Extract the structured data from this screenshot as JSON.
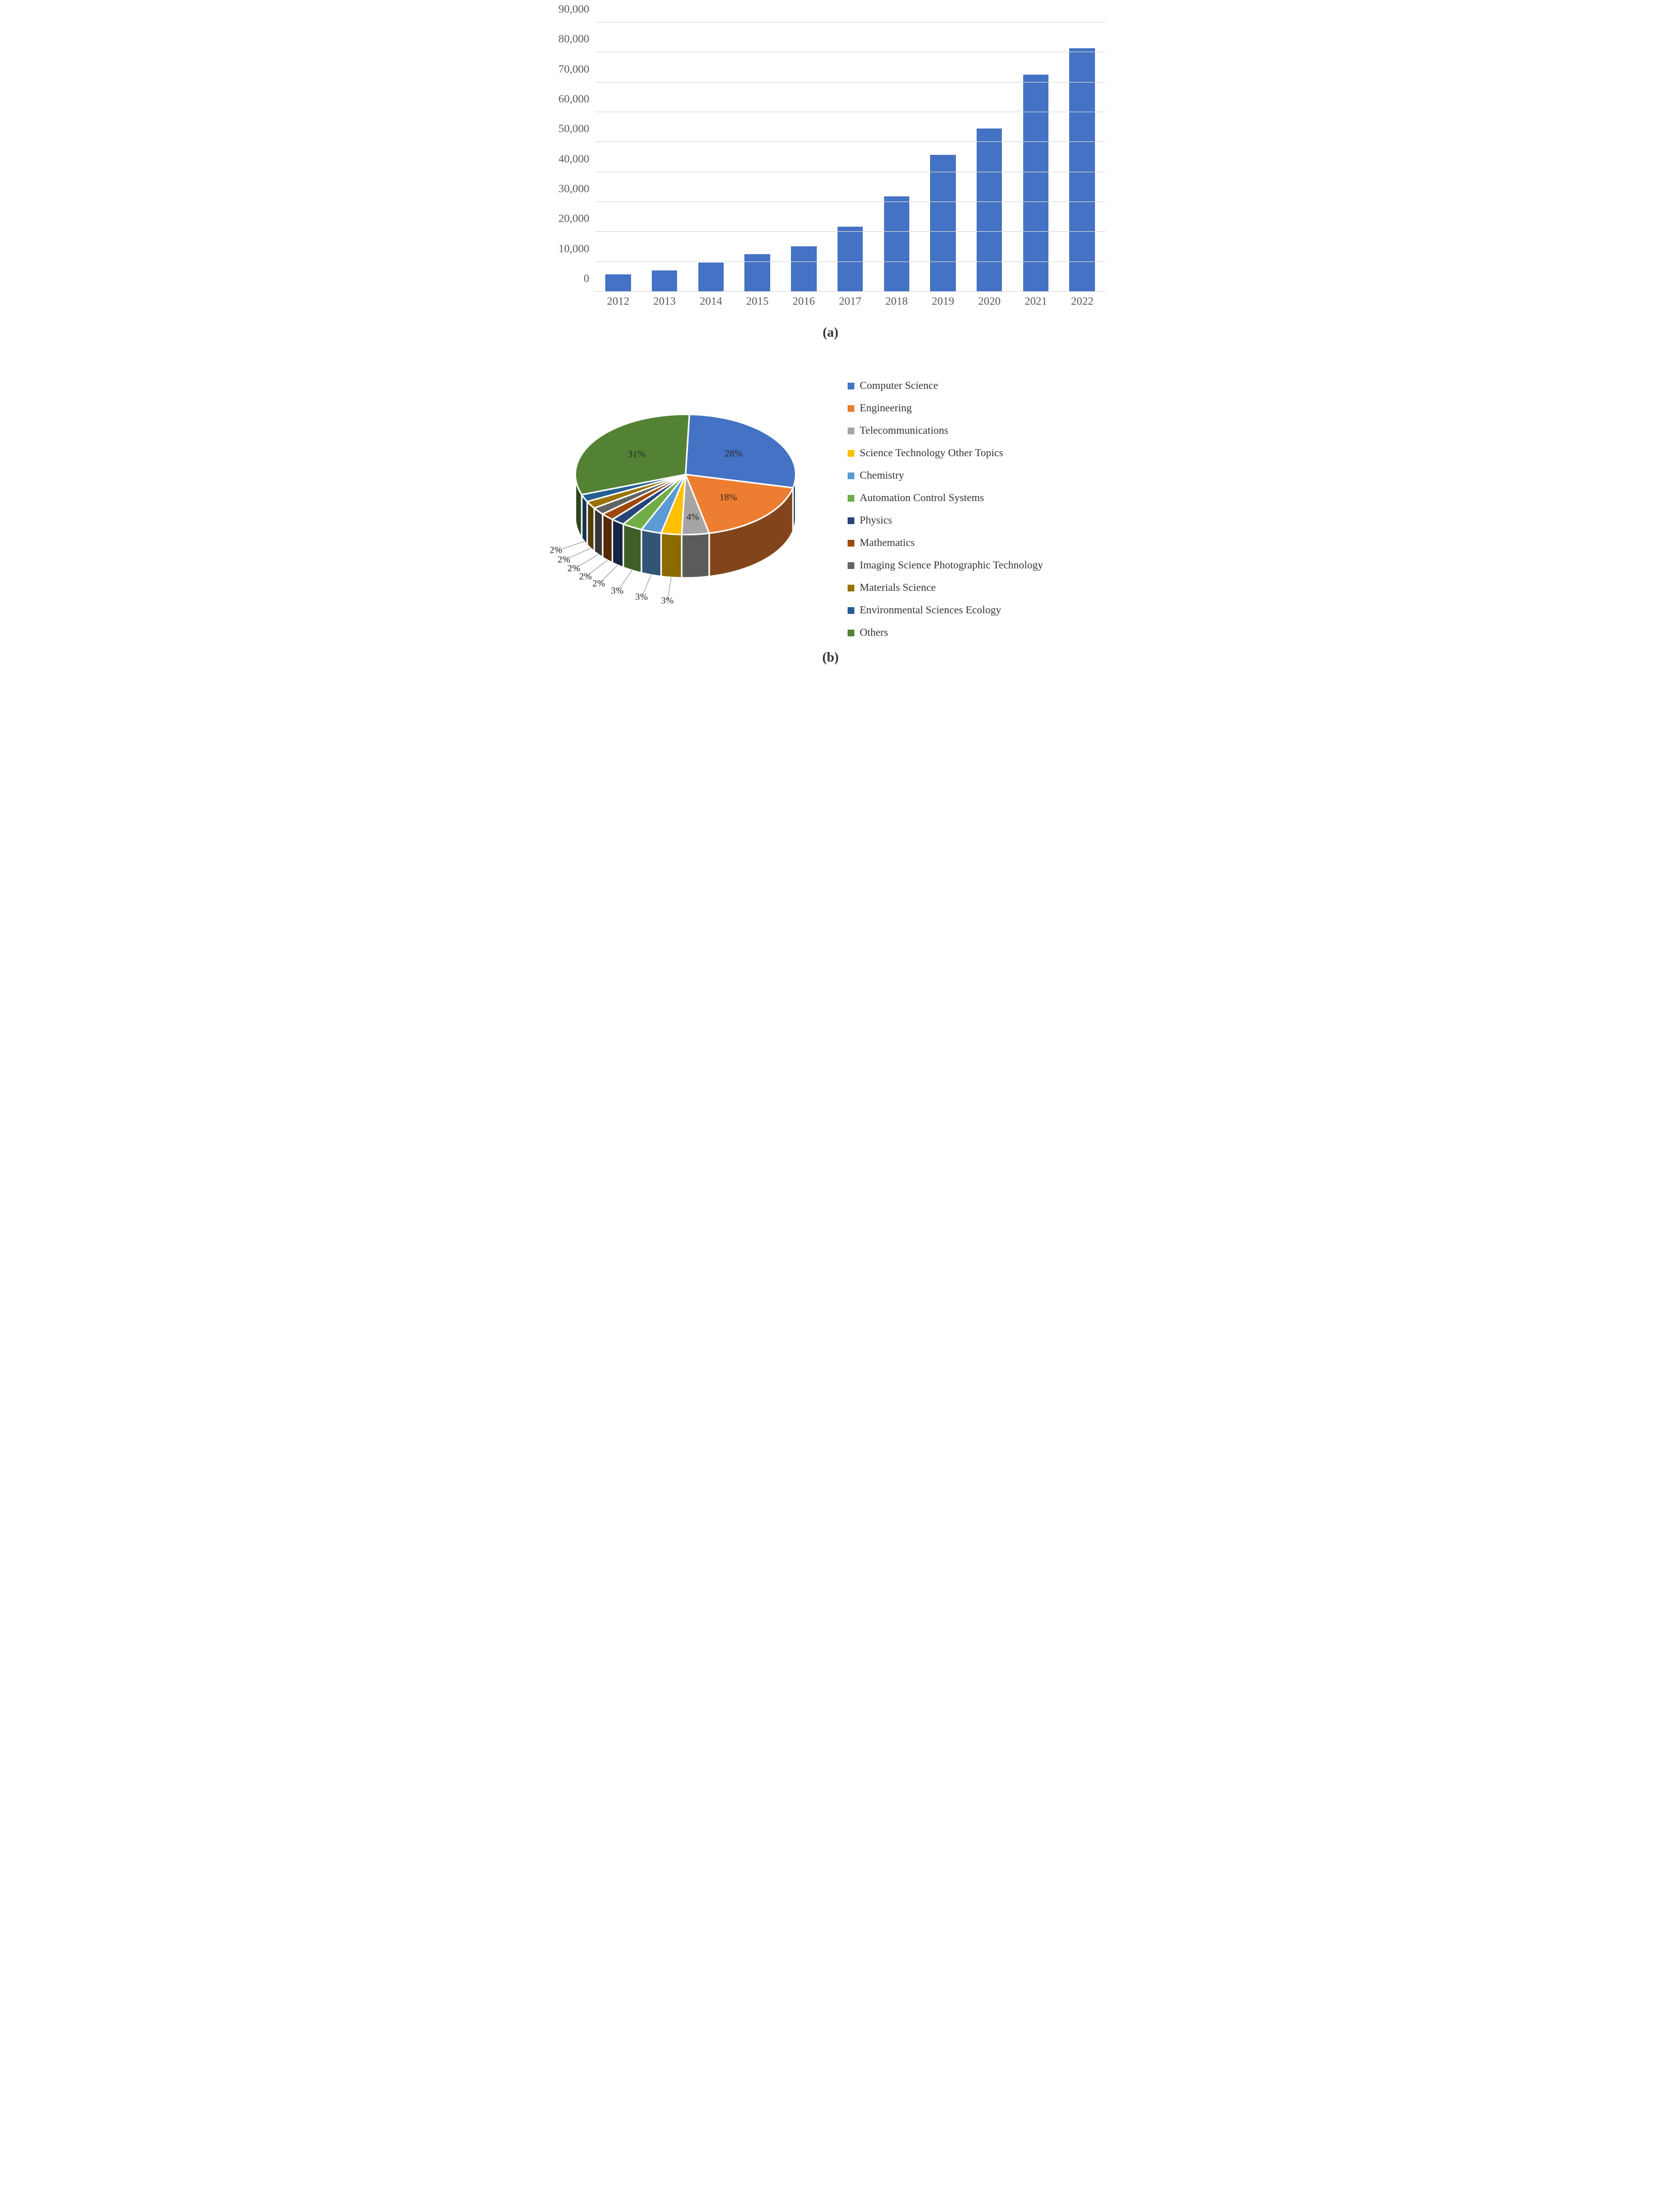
{
  "bar_chart": {
    "type": "bar",
    "ylim": [
      0,
      90000
    ],
    "ytick_step": 10000,
    "ytick_labels": [
      "0",
      "10,000",
      "20,000",
      "30,000",
      "40,000",
      "50,000",
      "60,000",
      "70,000",
      "80,000",
      "90,000"
    ],
    "categories": [
      "2012",
      "2013",
      "2014",
      "2015",
      "2016",
      "2017",
      "2018",
      "2019",
      "2020",
      "2021",
      "2022"
    ],
    "values": [
      5800,
      7200,
      9800,
      12500,
      15200,
      21800,
      31800,
      45700,
      54500,
      72500,
      81300
    ],
    "bar_color": "#4472c4",
    "grid_color": "#d9d9d9",
    "axis_color": "#bfbfbf",
    "background_color": "#ffffff",
    "tick_font_color": "#595959",
    "tick_fontsize": 20,
    "bar_width_ratio": 0.55,
    "caption": "(a)"
  },
  "pie_chart": {
    "type": "pie-3d",
    "caption": "(b)",
    "slices": [
      {
        "label": "Computer Science",
        "pct": 28,
        "color": "#4472c4",
        "pct_label": "28%"
      },
      {
        "label": "Engineering",
        "pct": 18,
        "color": "#ed7d31",
        "pct_label": "18%"
      },
      {
        "label": "Telecommunications",
        "pct": 4,
        "color": "#a5a5a5",
        "pct_label": "4%"
      },
      {
        "label": "Science Technology Other Topics",
        "pct": 3,
        "color": "#ffc000",
        "pct_label": "3%"
      },
      {
        "label": "Chemistry",
        "pct": 3,
        "color": "#5b9bd5",
        "pct_label": "3%"
      },
      {
        "label": "Automation Control Systems",
        "pct": 3,
        "color": "#70ad47",
        "pct_label": "3%"
      },
      {
        "label": "Physics",
        "pct": 2,
        "color": "#264478",
        "pct_label": "2%"
      },
      {
        "label": "Mathematics",
        "pct": 2,
        "color": "#9e480e",
        "pct_label": "2%"
      },
      {
        "label": "Imaging Science Photographic Technology",
        "pct": 2,
        "color": "#636363",
        "pct_label": "2%"
      },
      {
        "label": "Materials Science",
        "pct": 2,
        "color": "#997300",
        "pct_label": "2%"
      },
      {
        "label": "Environmental Sciences Ecology",
        "pct": 2,
        "color": "#255e91",
        "pct_label": "2%"
      },
      {
        "label": "Others",
        "pct": 31,
        "color": "#548235",
        "pct_label": "31%"
      }
    ],
    "label_pct_on_chart": [
      "28%",
      "18%",
      "4%",
      "3%",
      "3%",
      "3%",
      "2%",
      "2%",
      "2%",
      "2%",
      "2%",
      "31%"
    ],
    "slice_border_color": "#ffffff",
    "slice_border_width": 3,
    "label_fontsize": 19,
    "legend_fontsize": 19,
    "legend_marker_size": 12,
    "depth_ratio": 0.18,
    "ellipse_rx": 220,
    "ellipse_ry": 120,
    "start_angle_deg": -88,
    "side_shade_factor": 0.55
  }
}
